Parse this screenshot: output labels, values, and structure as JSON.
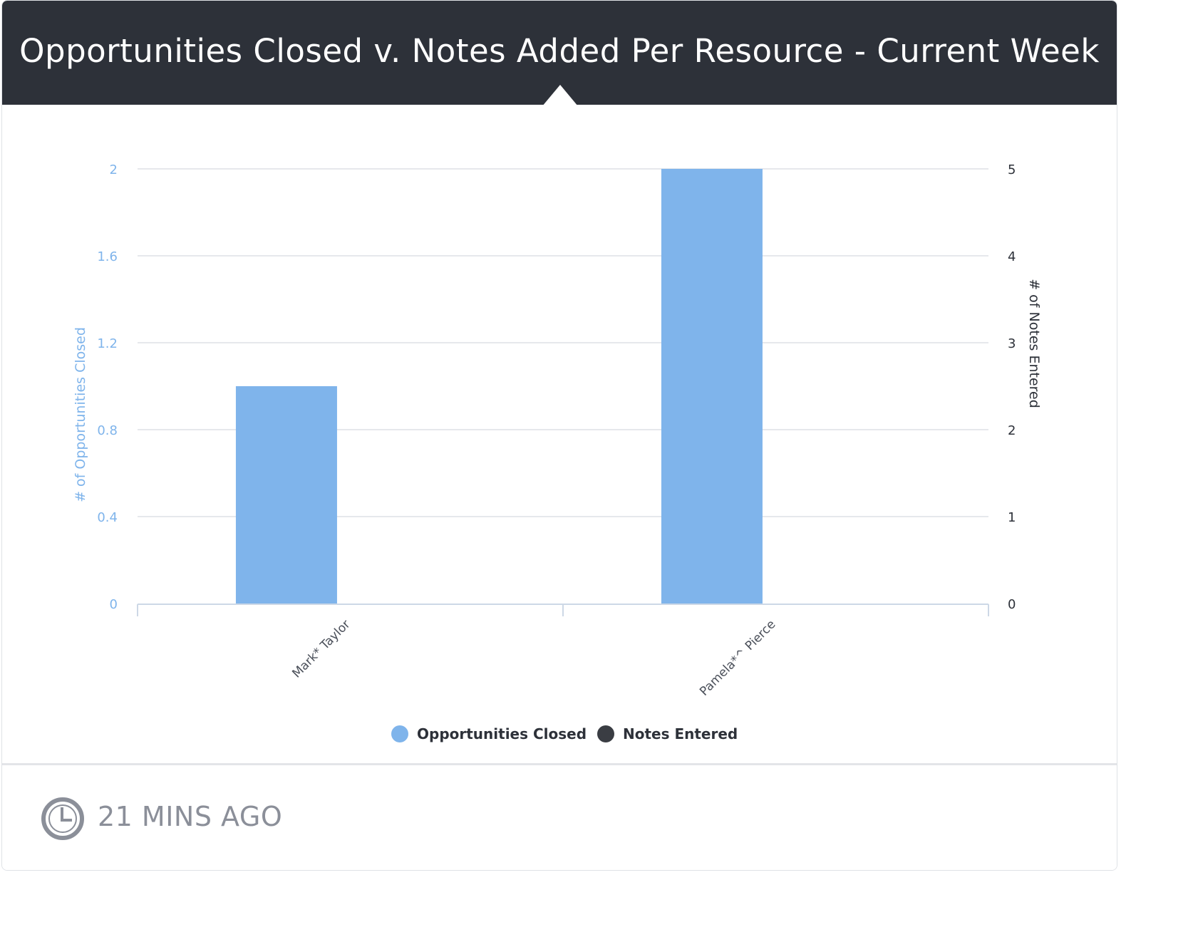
{
  "header": {
    "title": "Opportunities Closed v. Notes Added Per Resource - Current Week"
  },
  "footer": {
    "updated": "21 MINS AGO",
    "icon": "clock-icon"
  },
  "colors": {
    "bar": "#7fb4eb",
    "left_axis": "#7fb4eb",
    "right_axis": "#2d3139",
    "grid": "#e6e8ec",
    "notes": "#3a3d43"
  },
  "chart_data": {
    "type": "bar",
    "categories": [
      "Mark* Taylor",
      "Pamela*^ Pierce"
    ],
    "series": [
      {
        "name": "Opportunities Closed",
        "axis": "left",
        "values": [
          1,
          2
        ]
      },
      {
        "name": "Notes Entered",
        "axis": "right",
        "values": [
          0,
          0
        ]
      }
    ],
    "y_left": {
      "label": "# of Opportunities Closed",
      "ylim": [
        0,
        2
      ],
      "ticks": [
        "0",
        "0.4",
        "0.8",
        "1.2",
        "1.6",
        "2"
      ]
    },
    "y_right": {
      "label": "# of Notes Entered",
      "ylim": [
        0,
        5
      ],
      "ticks": [
        "0",
        "1",
        "2",
        "3",
        "4",
        "5"
      ]
    },
    "grid": true,
    "legend": "bottom"
  }
}
